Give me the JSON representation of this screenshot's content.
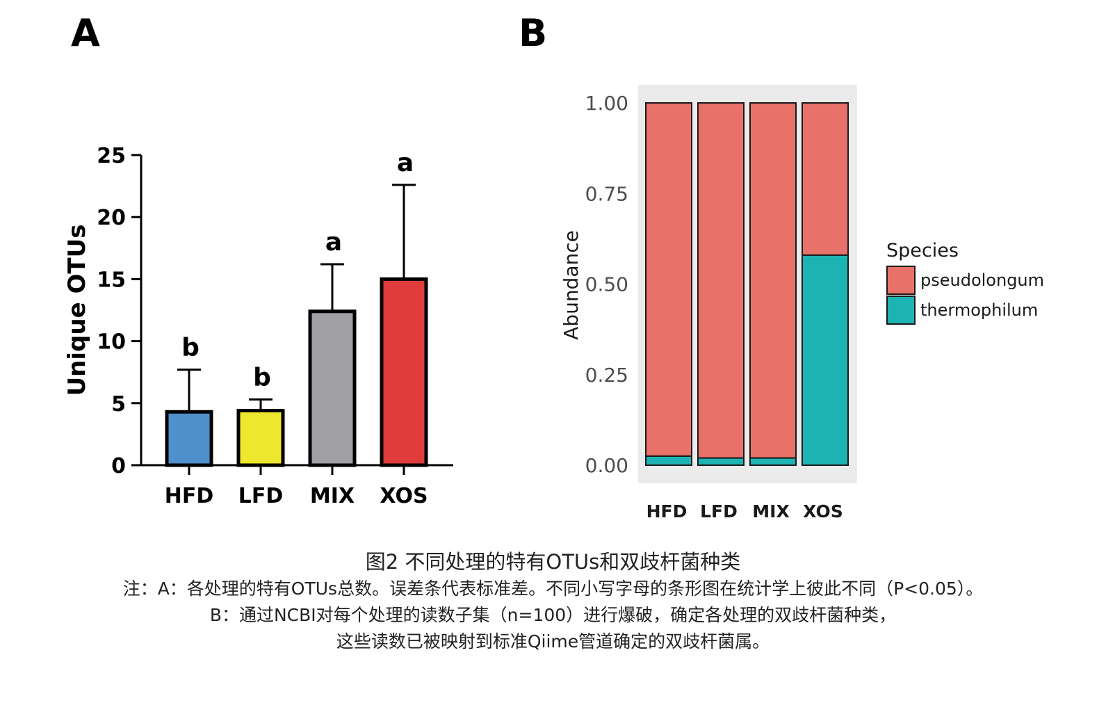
{
  "panels": {
    "a_letter": "A",
    "b_letter": "B"
  },
  "chart_data": [
    {
      "type": "bar",
      "title": "",
      "xlabel": "",
      "ylabel": "Unique OTUs",
      "ylim": [
        0,
        25
      ],
      "yticks": [
        0,
        5,
        10,
        15,
        20,
        25
      ],
      "categories": [
        "HFD",
        "LFD",
        "MIX",
        "XOS"
      ],
      "values": [
        4.3,
        4.4,
        12.4,
        15.0
      ],
      "error_upper": [
        7.7,
        5.3,
        16.2,
        22.6
      ],
      "significance": [
        "b",
        "b",
        "a",
        "a"
      ],
      "colors": [
        "#4f8fcc",
        "#ede72d",
        "#a0a0a4",
        "#e03c3c"
      ],
      "grid": false
    },
    {
      "type": "bar",
      "stacked": true,
      "title": "",
      "xlabel": "",
      "ylabel": "Abundance",
      "ylim": [
        0,
        1
      ],
      "yticks": [
        "0.00",
        "0.25",
        "0.50",
        "0.75",
        "1.00"
      ],
      "categories": [
        "HFD",
        "LFD",
        "MIX",
        "XOS"
      ],
      "series": [
        {
          "name": "thermophilum",
          "color": "#1db3b3",
          "values": [
            0.025,
            0.02,
            0.02,
            0.58
          ]
        },
        {
          "name": "pseudolongum",
          "color": "#e8726a",
          "values": [
            0.975,
            0.98,
            0.98,
            0.42
          ]
        }
      ],
      "legend": {
        "title": "Species",
        "position": "right",
        "order": [
          "pseudolongum",
          "thermophilum"
        ]
      },
      "panel_background": "#ebebeb",
      "grid": false
    }
  ],
  "caption": {
    "title": "图2 不同处理的特有OTUs和双歧杆菌种类",
    "line1": "注：A：各处理的特有OTUs总数。误差条代表标准差。不同小写字母的条形图在统计学上彼此不同（P<0.05）。",
    "line2": "B：通过NCBI对每个处理的读数子集（n=100）进行爆破，确定各处理的双歧杆菌种类，",
    "line3": "这些读数已被映射到标准Qiime管道确定的双歧杆菌属。"
  }
}
